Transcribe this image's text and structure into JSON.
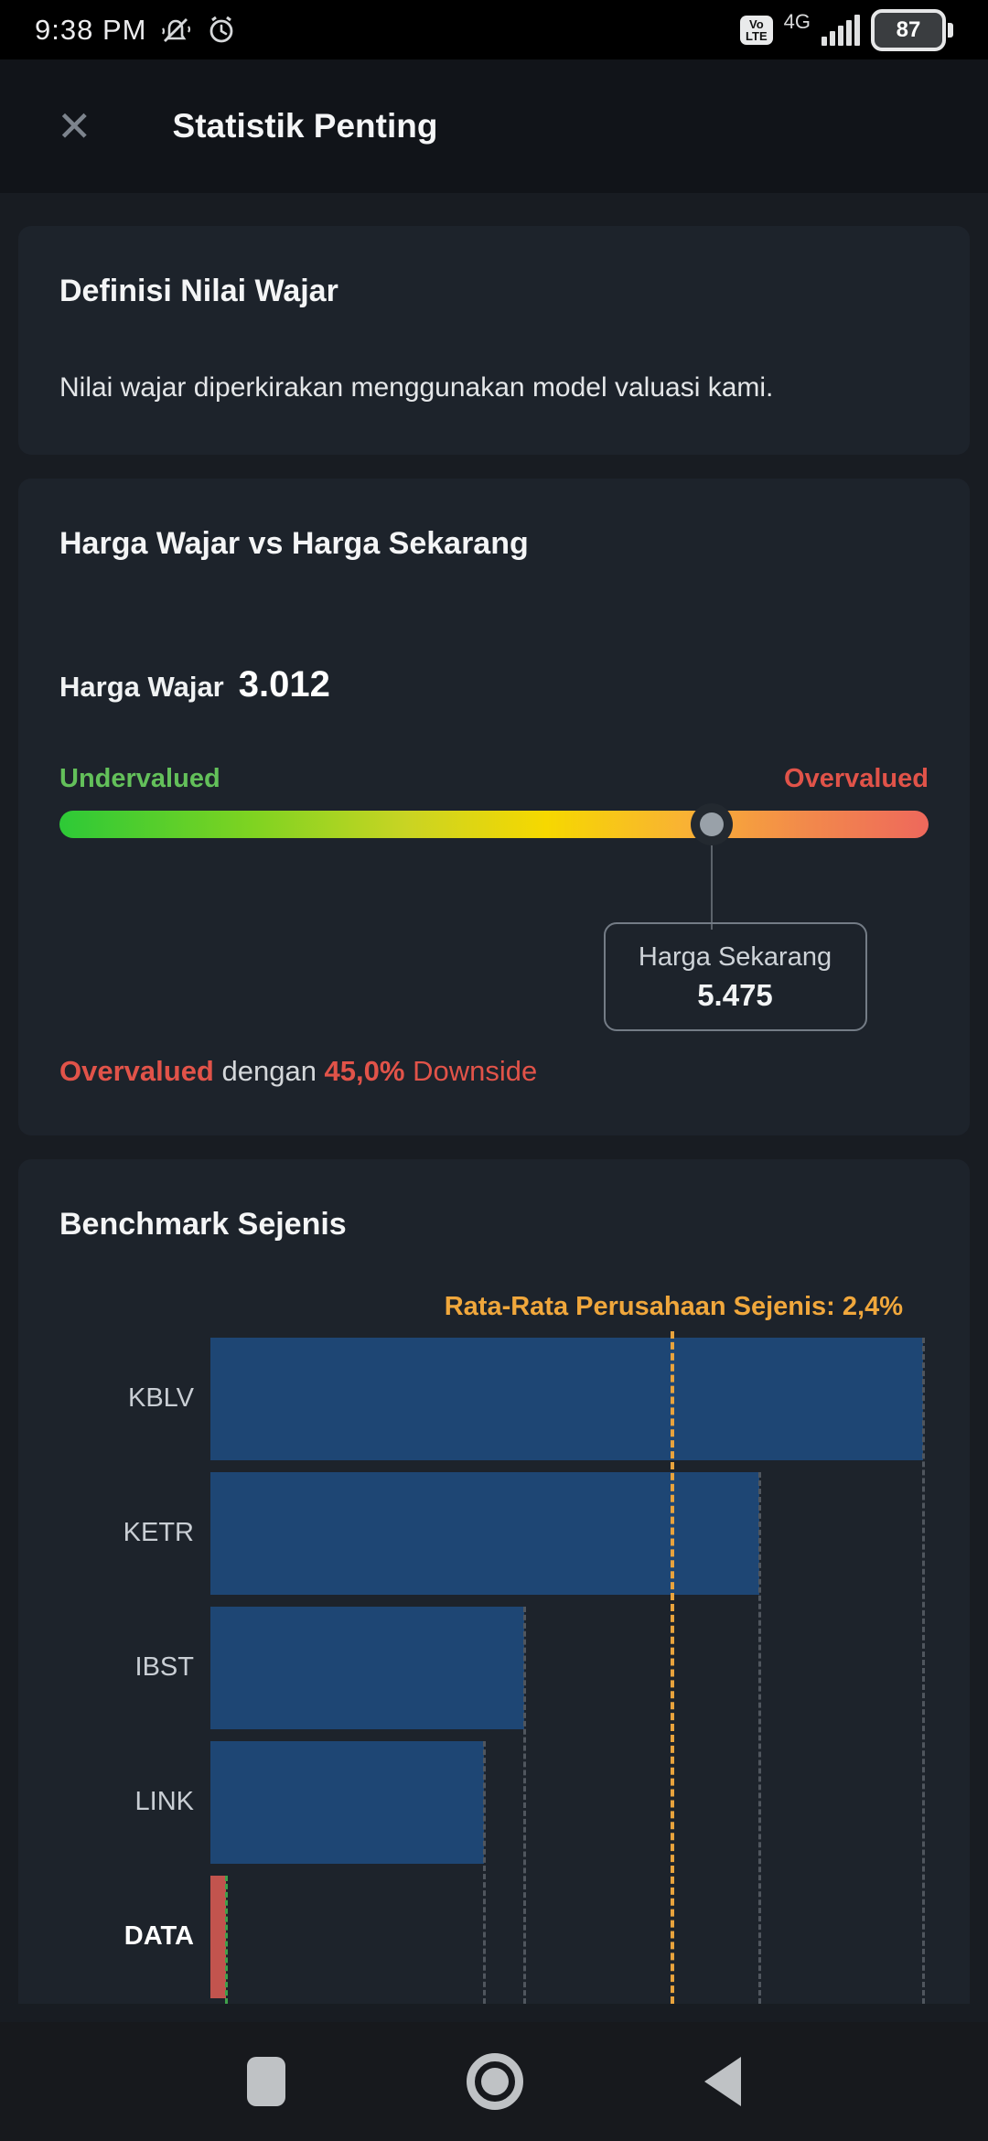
{
  "status_bar": {
    "time": "9:38 PM",
    "volte_line1": "Vo",
    "volte_line2": "LTE",
    "network": "4G",
    "battery_percent": "87"
  },
  "header": {
    "title": "Statistik Penting",
    "close_icon": "✕"
  },
  "cards": {
    "definition": {
      "title": "Definisi Nilai Wajar",
      "body": "Nilai wajar diperkirakan menggunakan model valuasi kami."
    },
    "fair_value": {
      "title": "Harga Wajar vs Harga Sekarang",
      "fair_price_label": "Harga Wajar",
      "fair_price": "3.012",
      "gauge": {
        "left_label": "Undervalued",
        "right_label": "Overvalued",
        "marker_position_pct": 75,
        "tooltip_label": "Harga Sekarang",
        "tooltip_value": "5.475"
      },
      "summary": {
        "part1": "Overvalued",
        "part2": " dengan ",
        "part3": "45,0%",
        "part4": " Downside"
      }
    },
    "benchmark": {
      "title": "Benchmark Sejenis",
      "chart_data": {
        "type": "bar",
        "orientation": "horizontal",
        "categories": [
          "KBLV",
          "KETR",
          "IBST",
          "LINK",
          "DATA"
        ],
        "values": [
          3.7,
          2.85,
          1.63,
          1.42,
          0.08
        ],
        "unit": "%",
        "highlight_category": "DATA",
        "average_label": "Rata-Rata Perusahaan Sejenis: 2,4%",
        "average_value": 2.4,
        "xlim": [
          0,
          3.73
        ],
        "bar_color": "#1e4674",
        "highlight_color": "#c2544e",
        "average_color": "#e8a33d",
        "grid": "per-bar dashed drop lines"
      }
    }
  },
  "colors": {
    "undervalued_green": "#63c05a",
    "overvalued_red": "#e15349",
    "annotation_orange": "#f0a73c",
    "card_background": "#1d232b",
    "page_background": "#181c22"
  }
}
